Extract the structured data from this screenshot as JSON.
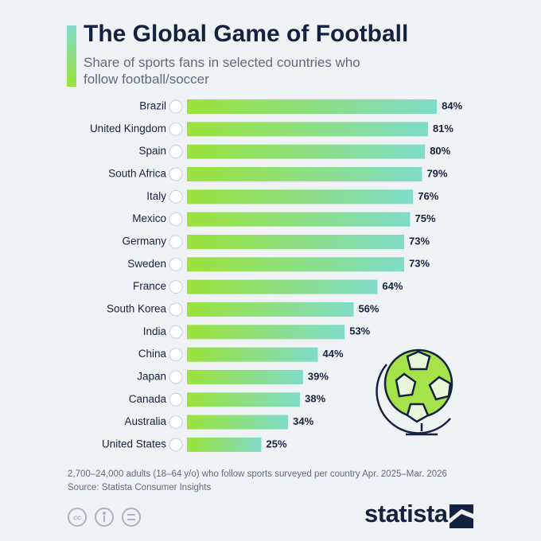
{
  "chart_data": {
    "type": "bar",
    "orientation": "horizontal",
    "title": "The Global Game of Football",
    "subtitle": "Share of sports fans in selected countries who follow football/soccer",
    "categories": [
      "Brazil",
      "United Kingdom",
      "Spain",
      "South Africa",
      "Italy",
      "Mexico",
      "Germany",
      "Sweden",
      "France",
      "South Korea",
      "India",
      "China",
      "Japan",
      "Canada",
      "Australia",
      "United States"
    ],
    "values": [
      84,
      81,
      80,
      79,
      76,
      75,
      73,
      73,
      64,
      56,
      53,
      44,
      39,
      38,
      34,
      25
    ],
    "value_labels": [
      "84%",
      "81%",
      "80%",
      "79%",
      "76%",
      "75%",
      "73%",
      "73%",
      "64%",
      "56%",
      "53%",
      "44%",
      "39%",
      "38%",
      "34%",
      "25%"
    ],
    "color": [
      "#9be33a",
      "#7fdcc8"
    ],
    "note": "2,700–24,000 adults (18–64 y/o) who follow sports surveyed per country Apr. 2025–Mar. 2026",
    "source": "Source: Statista Consumer Insights",
    "logo": "statista"
  }
}
